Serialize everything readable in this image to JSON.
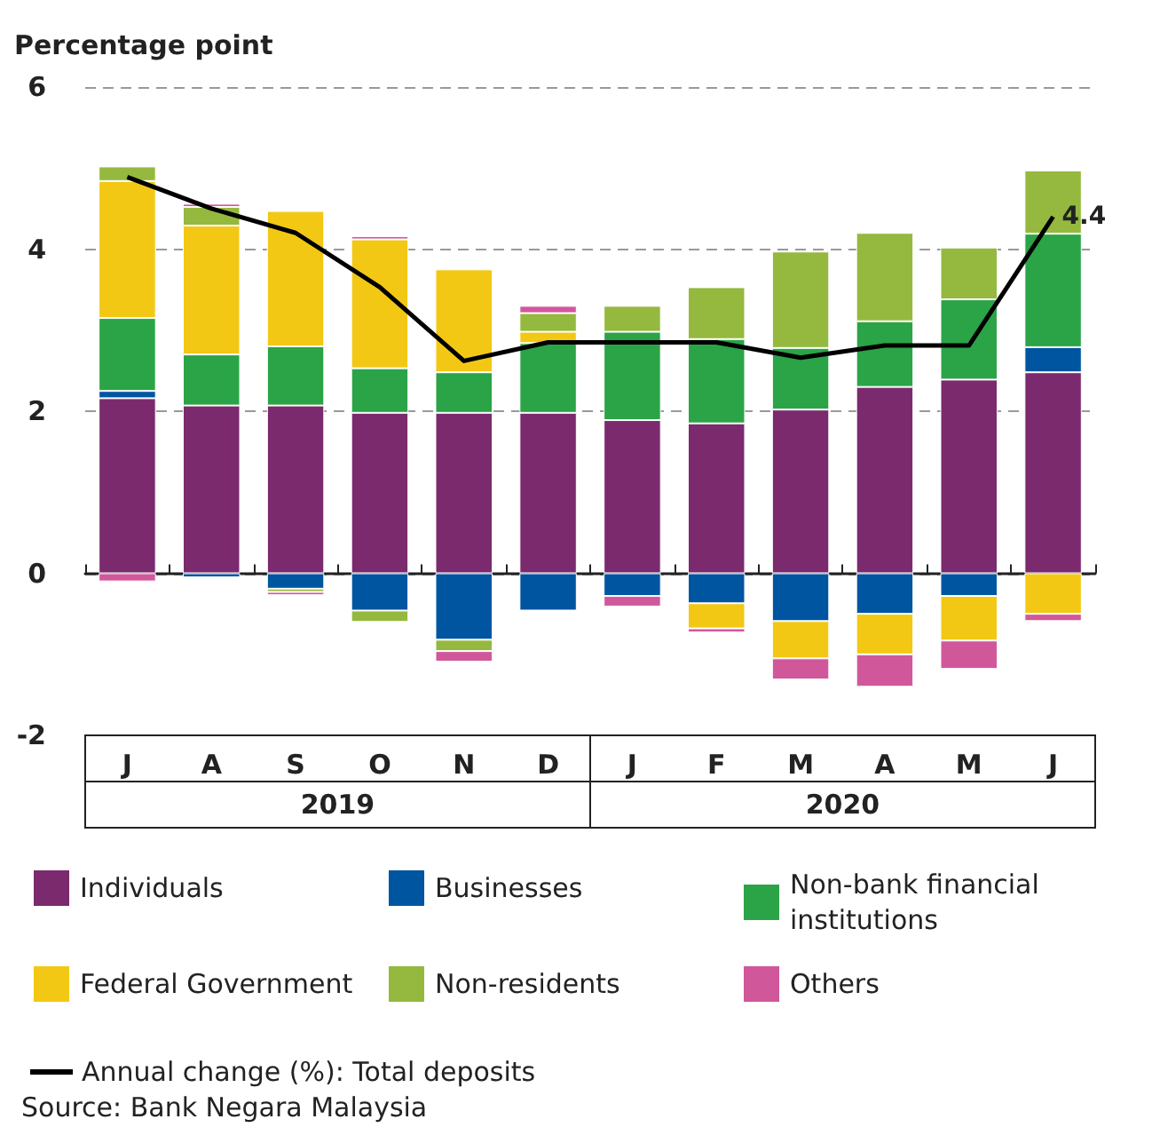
{
  "chart_data": {
    "type": "bar",
    "stacked": true,
    "ylabel": "Percentage point",
    "categories": [
      "J",
      "A",
      "S",
      "O",
      "N",
      "D",
      "J",
      "F",
      "M",
      "A",
      "M",
      "J"
    ],
    "series": [
      {
        "name": "Individuals",
        "color": "#7b2a6e",
        "values": [
          2.16,
          2.07,
          2.07,
          1.98,
          1.98,
          1.98,
          1.89,
          1.85,
          2.02,
          2.3,
          2.39,
          2.48
        ]
      },
      {
        "name": "Businesses",
        "color": "#0055a0",
        "values": [
          0.09,
          -0.05,
          -0.19,
          -0.46,
          -0.82,
          -0.46,
          -0.28,
          -0.37,
          -0.59,
          -0.5,
          -0.28,
          0.31
        ]
      },
      {
        "name": "Non-bank financial institutions",
        "color": "#2aa446",
        "values": [
          0.9,
          0.63,
          0.73,
          0.55,
          0.5,
          0.86,
          1.09,
          1.04,
          0.76,
          0.81,
          0.99,
          1.4
        ]
      },
      {
        "name": "Federal Government",
        "color": "#f2c814",
        "values": [
          1.69,
          1.59,
          1.67,
          1.59,
          1.27,
          0.14,
          null,
          -0.31,
          -0.46,
          -0.5,
          -0.55,
          -0.5
        ]
      },
      {
        "name": "Non-residents",
        "color": "#94b93e",
        "values": [
          0.18,
          0.23,
          -0.04,
          -0.14,
          -0.14,
          0.23,
          0.32,
          0.64,
          1.19,
          1.09,
          0.64,
          0.78
        ]
      },
      {
        "name": "Others",
        "color": "#d1579b",
        "values": [
          -0.1,
          0.04,
          -0.04,
          0.04,
          -0.13,
          0.09,
          -0.13,
          -0.05,
          -0.26,
          -0.4,
          -0.35,
          -0.09
        ]
      },
      {
        "name": "Annual change (%): Total deposits",
        "type": "line",
        "color": "#000000",
        "marker": "none",
        "values": [
          4.89,
          4.5,
          4.2,
          3.53,
          2.62,
          2.85,
          2.85,
          2.85,
          2.66,
          2.81,
          2.81,
          4.4
        ],
        "value_labels": [
          null,
          null,
          null,
          null,
          null,
          null,
          null,
          null,
          null,
          null,
          null,
          "4.4"
        ]
      }
    ],
    "ylim": [
      -2,
      6
    ],
    "yticks": [
      -2,
      0,
      2,
      4,
      6
    ],
    "grid": "y",
    "legend": "bottom",
    "annotations": [
      "2019",
      "2020",
      "Source: Bank Negara Malaysia"
    ]
  }
}
